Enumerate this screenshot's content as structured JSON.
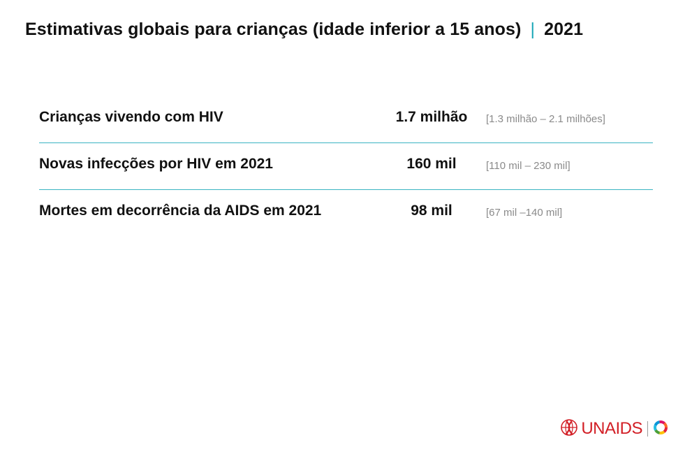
{
  "header": {
    "title": "Estimativas globais para crianças (idade inferior a 15 anos)",
    "separator": "|",
    "year": "2021"
  },
  "rows": [
    {
      "label": "Crianças vivendo com HIV",
      "value": "1.7 milhão",
      "range": "[1.3 milhão – 2.1 milhões]"
    },
    {
      "label": "Novas infecções por HIV em 2021",
      "value": "160 mil",
      "range": "[110 mil – 230 mil]"
    },
    {
      "label": "Mortes em decorrência da AIDS em 2021",
      "value": "98 mil",
      "range": "[67 mil –140 mil]"
    }
  ],
  "footer": {
    "logo_text": "UNAIDS",
    "logo_color": "#d21f26",
    "icons": [
      "ribbon-globe-icon",
      "sdg-wheel-icon"
    ]
  },
  "colors": {
    "accent": "#1aa7b7",
    "divider": "#3ab4c2",
    "range_text": "#8a8a8a"
  }
}
